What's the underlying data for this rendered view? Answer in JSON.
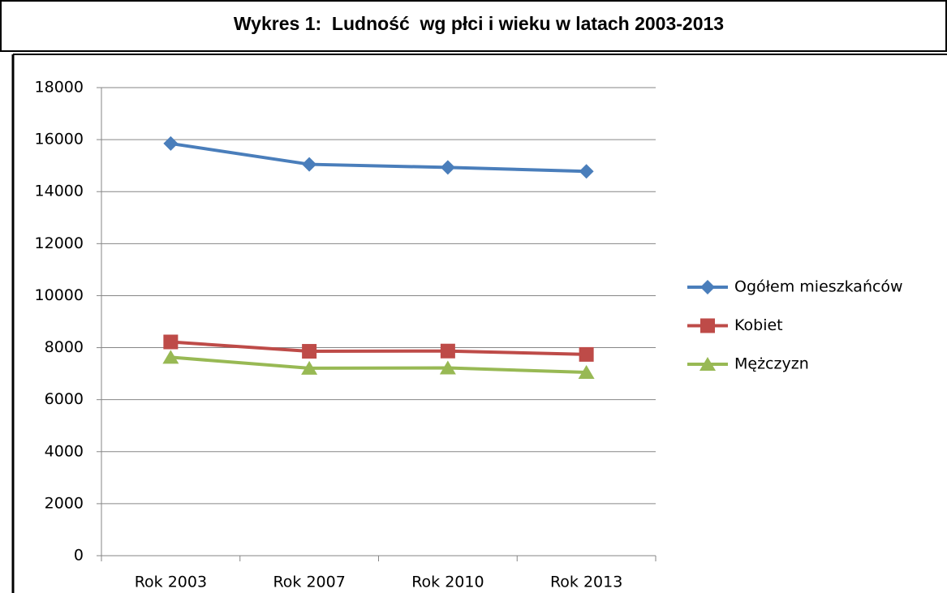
{
  "chart_data": {
    "type": "line",
    "title": "Wykres 1:  Ludność  wg płci i wieku w latach 2003-2013",
    "categories": [
      "Rok 2003",
      "Rok 2007",
      "Rok 2010",
      "Rok 2013"
    ],
    "series": [
      {
        "name": "Ogółem mieszkańców",
        "color": "#4a7ebb",
        "marker": "diamond",
        "values": [
          15850,
          15050,
          14930,
          14780
        ]
      },
      {
        "name": "Kobiet",
        "color": "#be4b48",
        "marker": "square",
        "values": [
          8220,
          7860,
          7870,
          7740
        ]
      },
      {
        "name": "Mężczyzn",
        "color": "#98b954",
        "marker": "triangle",
        "values": [
          7630,
          7210,
          7220,
          7050
        ]
      }
    ],
    "ylim": [
      0,
      18000
    ],
    "yticks": [
      0,
      2000,
      4000,
      6000,
      8000,
      10000,
      12000,
      14000,
      16000,
      18000
    ],
    "grid": true,
    "legend": "right"
  }
}
